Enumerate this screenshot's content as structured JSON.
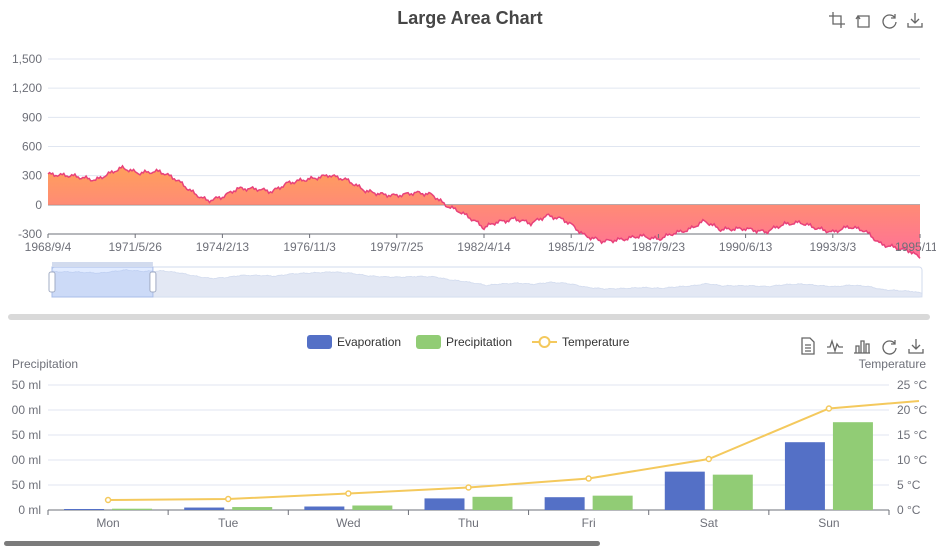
{
  "colors": {
    "area_line": "#e8417a",
    "area_top": "#ffa05a",
    "area_bottom": "#ff6f9a",
    "evaporation": "#5470c6",
    "precipitation": "#91cc75",
    "temperature": "#f4c95d",
    "axis_text": "#6e7079",
    "grid": "#e0e6f1"
  },
  "top_toolbox": [
    "zoom-area-icon",
    "zoom-reset-icon",
    "restore-icon",
    "download-icon"
  ],
  "bottom_toolbox": [
    "data-view-icon",
    "line-type-icon",
    "bar-type-icon",
    "restore-icon",
    "download-icon"
  ],
  "chart_data": [
    {
      "type": "area",
      "title": "Large Area Chart",
      "y_ticks": [
        "1,500",
        "1,200",
        "900",
        "600",
        "300",
        "0",
        "-300"
      ],
      "ylim": [
        -300,
        1500
      ],
      "x_ticks": [
        "1968/9/4",
        "1971/5/26",
        "1974/2/13",
        "1976/11/3",
        "1979/7/25",
        "1982/4/14",
        "1985/1/2",
        "1987/9/23",
        "1990/6/13",
        "1993/3/3",
        "1995/11/"
      ],
      "x_range": [
        "1968/9/4",
        "1995/11/22"
      ],
      "series_points": [
        [
          "1968/9/4",
          320
        ],
        [
          "1969/6/1",
          300
        ],
        [
          "1970/3/1",
          250
        ],
        [
          "1970/9/1",
          330
        ],
        [
          "1971/1/1",
          380
        ],
        [
          "1971/7/1",
          330
        ],
        [
          "1972/3/1",
          340
        ],
        [
          "1972/9/1",
          260
        ],
        [
          "1973/4/1",
          120
        ],
        [
          "1973/9/1",
          40
        ],
        [
          "1974/2/13",
          80
        ],
        [
          "1974/8/1",
          160
        ],
        [
          "1975/3/1",
          170
        ],
        [
          "1975/9/1",
          140
        ],
        [
          "1976/3/1",
          230
        ],
        [
          "1976/11/3",
          260
        ],
        [
          "1977/6/1",
          310
        ],
        [
          "1978/1/1",
          250
        ],
        [
          "1978/8/1",
          150
        ],
        [
          "1979/3/1",
          100
        ],
        [
          "1979/7/25",
          90
        ],
        [
          "1980/3/1",
          120
        ],
        [
          "1980/9/1",
          100
        ],
        [
          "1981/2/1",
          0
        ],
        [
          "1981/8/1",
          -80
        ],
        [
          "1982/1/1",
          -160
        ],
        [
          "1982/4/14",
          -240
        ],
        [
          "1982/9/1",
          -180
        ],
        [
          "1983/4/1",
          -140
        ],
        [
          "1983/10/1",
          -190
        ],
        [
          "1984/4/1",
          -110
        ],
        [
          "1984/10/1",
          -150
        ],
        [
          "1985/1/2",
          -200
        ],
        [
          "1985/6/1",
          -310
        ],
        [
          "1986/1/1",
          -380
        ],
        [
          "1986/9/1",
          -350
        ],
        [
          "1987/3/1",
          -320
        ],
        [
          "1987/9/23",
          -350
        ],
        [
          "1988/3/1",
          -300
        ],
        [
          "1988/9/1",
          -260
        ],
        [
          "1989/3/1",
          -170
        ],
        [
          "1989/9/1",
          -260
        ],
        [
          "1990/6/13",
          -240
        ],
        [
          "1991/2/1",
          -280
        ],
        [
          "1991/9/1",
          -200
        ],
        [
          "1992/3/1",
          -180
        ],
        [
          "1992/9/1",
          -240
        ],
        [
          "1993/3/3",
          -280
        ],
        [
          "1993/9/1",
          -220
        ],
        [
          "1994/3/1",
          -260
        ],
        [
          "1994/9/1",
          -400
        ],
        [
          "1995/3/1",
          -440
        ],
        [
          "1995/8/1",
          -470
        ],
        [
          "1995/11/22",
          -550
        ]
      ],
      "zoom_window": [
        "1968/9/4",
        "1971/11/1"
      ]
    },
    {
      "type": "bar",
      "legend": [
        "Evaporation",
        "Precipitation",
        "Temperature"
      ],
      "categories": [
        "Mon",
        "Tue",
        "Wed",
        "Thu",
        "Fri",
        "Sat",
        "Sun"
      ],
      "series": [
        {
          "name": "Evaporation",
          "type": "bar",
          "values": [
            2.0,
            4.9,
            7.0,
            23.2,
            25.6,
            76.7,
            135.6
          ]
        },
        {
          "name": "Precipitation",
          "type": "bar",
          "values": [
            2.6,
            5.9,
            9.0,
            26.4,
            28.7,
            70.7,
            175.6
          ]
        },
        {
          "name": "Temperature",
          "type": "line",
          "values": [
            2.0,
            2.2,
            3.3,
            4.5,
            6.3,
            10.2,
            20.3
          ]
        }
      ],
      "y_left_label": "Precipitation",
      "y_left_ticks": [
        "50 ml",
        "00 ml",
        "50 ml",
        "00 ml",
        "50 ml",
        "0 ml"
      ],
      "y_left_range": [
        0,
        250
      ],
      "y_right_label": "Temperature",
      "y_right_ticks": [
        "25 °C",
        "20 °C",
        "15 °C",
        "10 °C",
        "5 °C",
        "0 °C"
      ],
      "y_right_range": [
        0,
        25
      ]
    }
  ]
}
